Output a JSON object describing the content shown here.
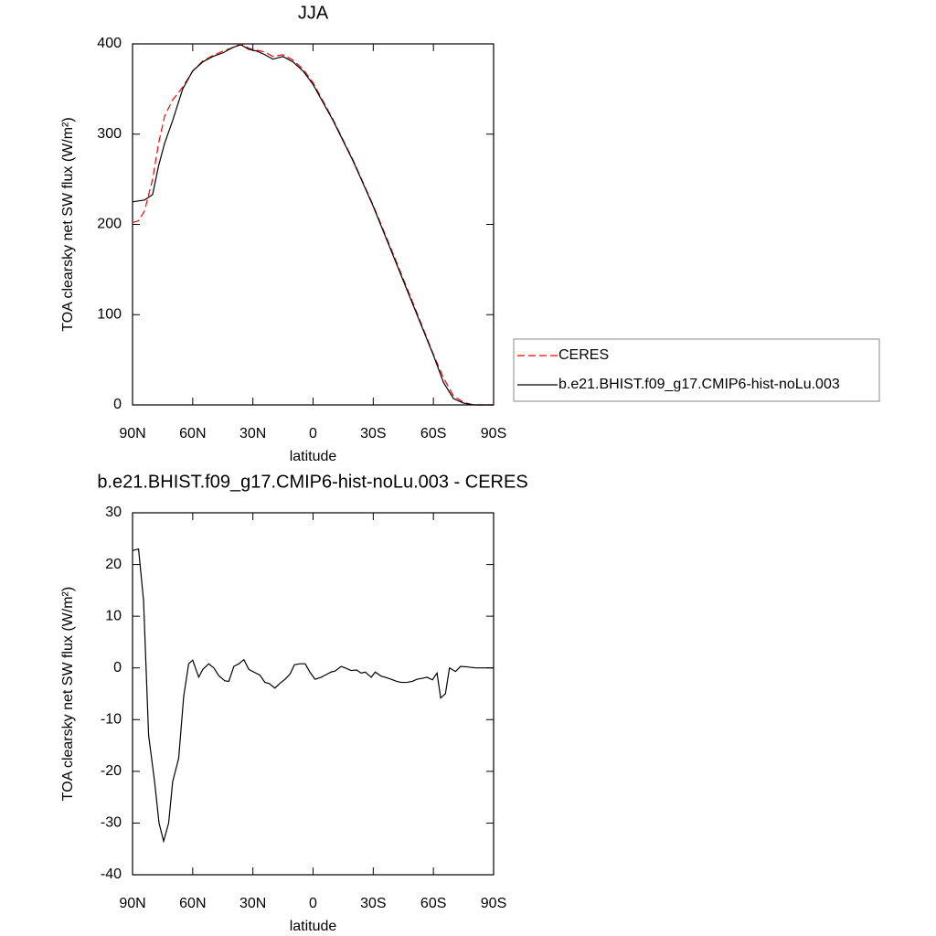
{
  "chart_data": [
    {
      "type": "line",
      "title": "JJA",
      "xlabel": "latitude",
      "ylabel": "TOA clearsky net SW flux (W/m²)",
      "x": [
        90,
        87,
        84,
        80,
        77,
        74,
        70,
        65,
        60,
        55,
        50,
        45,
        40,
        36,
        32,
        28,
        24,
        20,
        15,
        10,
        5,
        0,
        -10,
        -20,
        -30,
        -40,
        -50,
        -60,
        -65,
        -70,
        -75,
        -80,
        -85,
        -90
      ],
      "series": [
        {
          "name": "CERES",
          "color": "#ff0000",
          "dash": true,
          "values": [
            202,
            204,
            215,
            250,
            290,
            320,
            338,
            352,
            370,
            381,
            387,
            392,
            396,
            400,
            395,
            393,
            391,
            386,
            388,
            382,
            372,
            357,
            316,
            271,
            221,
            167,
            112,
            56,
            30,
            10,
            3,
            0,
            0,
            0
          ]
        },
        {
          "name": "b.e21.BHIST.f09_g17.CMIP6-hist-noLu.003",
          "color": "#000000",
          "dash": false,
          "values": [
            225,
            226,
            227,
            233,
            265,
            290,
            315,
            350,
            370,
            380,
            386,
            390,
            396,
            399,
            394,
            392,
            388,
            383,
            386,
            380,
            370,
            355,
            315,
            270,
            220,
            165,
            110,
            55,
            25,
            7,
            2,
            0,
            0,
            0
          ]
        }
      ],
      "xlim": [
        90,
        -90
      ],
      "xticks": [
        {
          "value": 90,
          "label": "90N"
        },
        {
          "value": 60,
          "label": "60N"
        },
        {
          "value": 30,
          "label": "30N"
        },
        0,
        {
          "value": -30,
          "label": "30S"
        },
        {
          "value": -60,
          "label": "60S"
        },
        {
          "value": -90,
          "label": "90S"
        }
      ],
      "ylim": [
        0,
        400
      ],
      "yticks": [
        0,
        100,
        200,
        300,
        400
      ],
      "legend": "right"
    },
    {
      "type": "line",
      "title": "b.e21.BHIST.f09_g17.CMIP6-hist-noLu.003 - CERES",
      "xlabel": "latitude",
      "ylabel": "TOA clearsky net SW flux (W/m²)",
      "x": [
        90,
        87,
        84.5,
        82,
        79,
        76.8,
        74.5,
        72,
        70,
        67,
        64.5,
        62,
        60,
        57,
        55,
        52,
        49.5,
        47,
        44,
        42,
        39.5,
        37,
        34.5,
        32,
        29.5,
        26.5,
        24,
        22,
        19,
        16.6,
        14,
        11.5,
        9.3,
        6.6,
        3.9,
        1.6,
        -1,
        -4,
        -6,
        -9,
        -11,
        -14,
        -16,
        -19,
        -21.7,
        -24,
        -26,
        -29,
        -31,
        -34,
        -36,
        -39,
        -41.7,
        -44,
        -46.7,
        -49.5,
        -51.7,
        -54.5,
        -56.8,
        -59.5,
        -61.8,
        -63.6,
        -66,
        -68,
        -71,
        -73.6,
        -76.8,
        -81,
        -90
      ],
      "values": [
        22.7,
        23,
        13,
        -13,
        -22,
        -30,
        -33.5,
        -30,
        -22,
        -17.5,
        -5.5,
        0.8,
        1.5,
        -1.8,
        -0.3,
        0.8,
        0,
        -1.5,
        -2.5,
        -2.6,
        0.3,
        0.8,
        1.6,
        -0.3,
        -0.8,
        -1.4,
        -2.8,
        -3,
        -3.9,
        -3,
        -2.2,
        -1.2,
        0.6,
        0.8,
        0.8,
        -0.8,
        -2.2,
        -1.8,
        -1.4,
        -0.8,
        -0.6,
        0.3,
        0,
        -0.5,
        -0.4,
        -1,
        -0.8,
        -1.8,
        -0.8,
        -1.6,
        -1.8,
        -2.2,
        -2.6,
        -2.8,
        -2.8,
        -2.6,
        -2.2,
        -2,
        -1.8,
        -2.3,
        -1,
        -5.8,
        -5,
        0,
        -0.7,
        0.3,
        0.2,
        0,
        0
      ],
      "color": "#000000",
      "xlim": [
        90,
        -90
      ],
      "xticks": [
        {
          "value": 90,
          "label": "90N"
        },
        {
          "value": 60,
          "label": "60N"
        },
        {
          "value": 30,
          "label": "30N"
        },
        0,
        {
          "value": -30,
          "label": "30S"
        },
        {
          "value": -60,
          "label": "60S"
        },
        {
          "value": -90,
          "label": "90S"
        }
      ],
      "ylim": [
        -40,
        30
      ],
      "yticks": [
        -40,
        -30,
        -20,
        -10,
        0,
        10,
        20,
        30
      ]
    }
  ]
}
